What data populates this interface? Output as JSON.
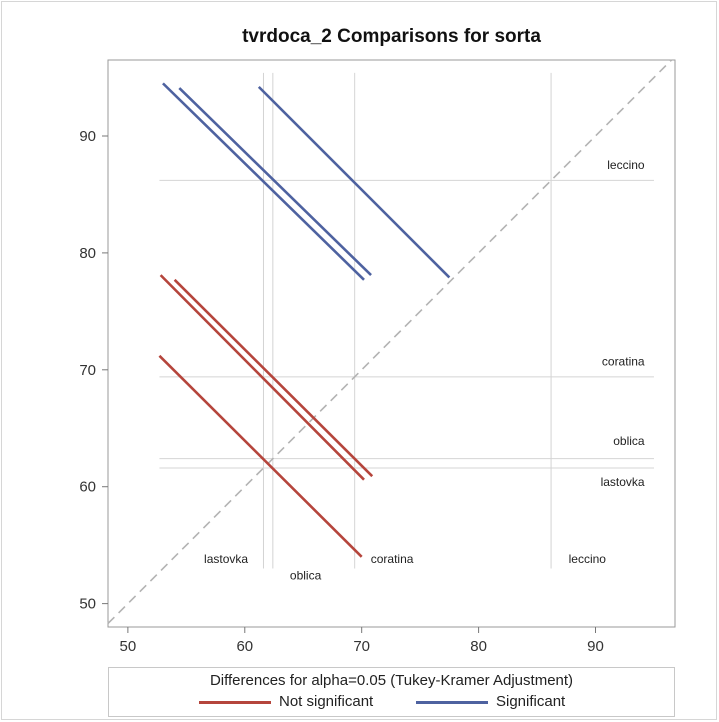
{
  "chart_data": {
    "type": "line",
    "title": "tvrdoca_2 Comparisons for sorta",
    "xlabel": "",
    "ylabel": "",
    "xlim": [
      48.3,
      96.8
    ],
    "ylim": [
      48.0,
      96.5
    ],
    "x_ticks": [
      50,
      60,
      70,
      80,
      90
    ],
    "y_ticks": [
      50,
      60,
      70,
      80,
      90
    ],
    "grid": false,
    "diagonal_reference": true,
    "groups": [
      {
        "name": "leccino",
        "mean": 86.2
      },
      {
        "name": "coratina",
        "mean": 69.4
      },
      {
        "name": "oblica",
        "mean": 62.4
      },
      {
        "name": "lastovka",
        "mean": 61.6
      }
    ],
    "x_group_labels": [
      {
        "name": "lastovka",
        "x": 58.4,
        "y": 53.8
      },
      {
        "name": "oblica",
        "x": 65.2,
        "y": 52.4
      },
      {
        "name": "coratina",
        "x": 72.6,
        "y": 53.8
      },
      {
        "name": "leccino",
        "x": 89.3,
        "y": 53.8
      }
    ],
    "y_group_labels": [
      {
        "name": "leccino",
        "x": 94.2,
        "y": 87.5
      },
      {
        "name": "coratina",
        "x": 94.2,
        "y": 70.7
      },
      {
        "name": "oblica",
        "x": 94.2,
        "y": 63.9
      },
      {
        "name": "lastovka",
        "x": 94.2,
        "y": 60.4
      }
    ],
    "series": [
      {
        "name": "Not significant",
        "color": "#b5453c",
        "segments": [
          {
            "x": [
              52.7,
              70.0
            ],
            "y": [
              71.2,
              54.0
            ]
          },
          {
            "x": [
              52.8,
              70.2
            ],
            "y": [
              78.1,
              60.6
            ]
          },
          {
            "x": [
              54.0,
              70.9
            ],
            "y": [
              77.7,
              60.9
            ]
          }
        ]
      },
      {
        "name": "Significant",
        "color": "#4e62a0",
        "segments": [
          {
            "x": [
              53.0,
              70.2
            ],
            "y": [
              94.5,
              77.7
            ]
          },
          {
            "x": [
              54.4,
              70.8
            ],
            "y": [
              94.1,
              78.1
            ]
          },
          {
            "x": [
              61.2,
              77.5
            ],
            "y": [
              94.2,
              77.9
            ]
          }
        ]
      }
    ],
    "legend": {
      "title": "Differences for alpha=0.05 (Tukey-Kramer Adjustment)",
      "placement": "bottom",
      "entries": [
        "Not significant",
        "Significant"
      ]
    }
  }
}
